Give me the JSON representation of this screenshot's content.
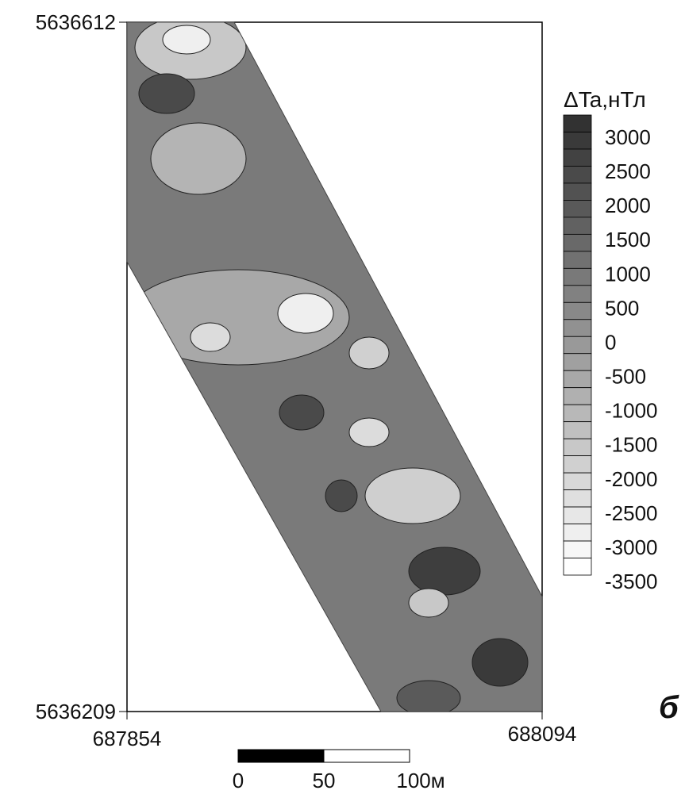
{
  "map": {
    "y_top": 5636612,
    "y_bottom": 5636209,
    "x_left": 687854,
    "x_right": 688094,
    "panel_letter": "б"
  },
  "colorbar": {
    "title": "ΔTa,нТл",
    "levels": [
      3000,
      2500,
      2000,
      1500,
      1000,
      500,
      0,
      -500,
      -1000,
      -1500,
      -2000,
      -2500,
      -3000,
      -3500
    ]
  },
  "scale_bar": {
    "labels": [
      "0",
      "50",
      "100м"
    ]
  }
}
